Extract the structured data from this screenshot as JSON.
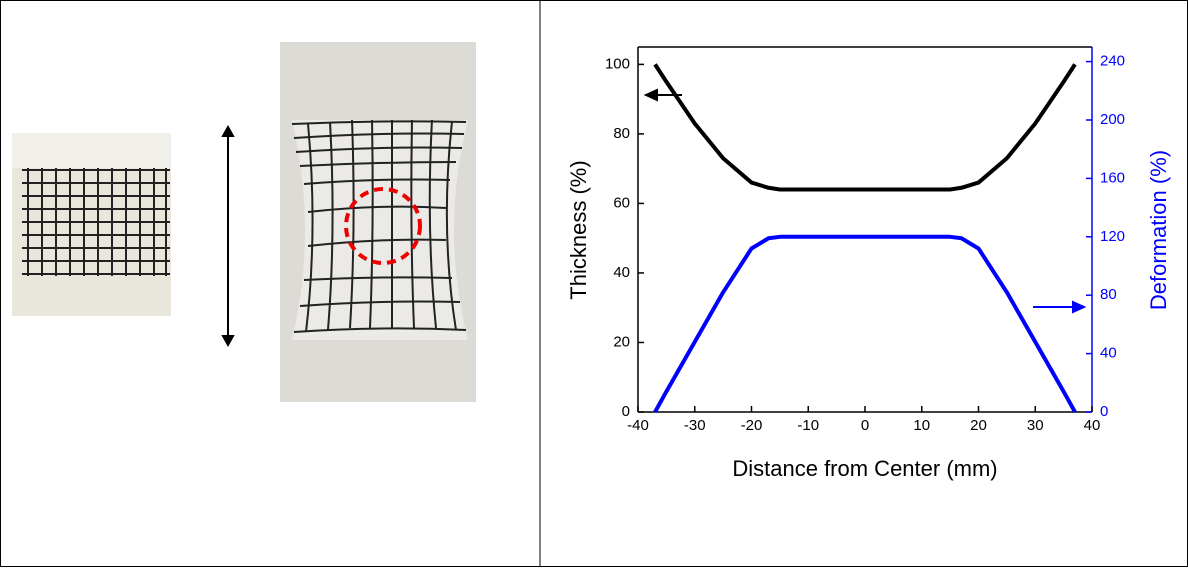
{
  "chart_data": {
    "type": "line",
    "xlabel": "Distance from Center (mm)",
    "ylabel": "Thickness (%)",
    "y2label": "Deformation (%)",
    "x": [
      -37,
      -35,
      -30,
      -25,
      -20,
      -17,
      -15,
      -10,
      0,
      10,
      15,
      17,
      20,
      25,
      30,
      35,
      37
    ],
    "series": [
      {
        "color": "#000000",
        "values": [
          100,
          95,
          83,
          73,
          66,
          64.5,
          64,
          64,
          64,
          64,
          64,
          64.5,
          66,
          73,
          83,
          95,
          100
        ]
      },
      {
        "color": "#0000ff",
        "axis": "y2",
        "values": [
          0,
          14,
          48,
          82,
          112,
          119,
          120,
          120,
          120,
          120,
          120,
          119,
          112,
          82,
          48,
          14,
          0
        ]
      }
    ],
    "xlim": [
      -40,
      40
    ],
    "xticks": [
      -40,
      -30,
      -20,
      -10,
      0,
      10,
      20,
      30,
      40
    ],
    "ylim": [
      0,
      105
    ],
    "yticks": [
      0,
      20,
      40,
      60,
      80,
      100
    ],
    "y2lim": [
      0,
      250
    ],
    "y2ticks": [
      0,
      40,
      80,
      120,
      160,
      200,
      240
    ]
  }
}
